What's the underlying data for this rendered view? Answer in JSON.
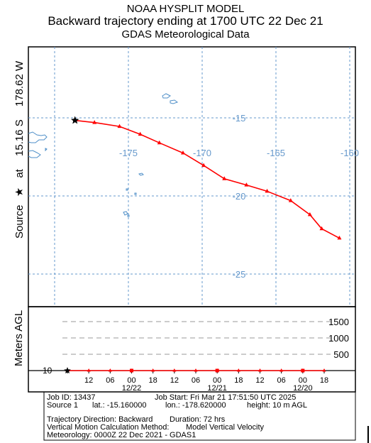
{
  "header": {
    "line1": "NOAA HYSPLIT MODEL",
    "line2": "Backward trajectory ending at 1700 UTC 22 Dec 21",
    "line3": "GDAS Meteorological Data"
  },
  "map": {
    "side_label_parts": [
      "Source",
      "★",
      "at",
      "15.16 S",
      "178.62 W"
    ],
    "lon_labels": [
      "-175",
      "-170",
      "-165",
      "-160"
    ],
    "lat_labels": [
      "-15",
      "-20",
      "-25"
    ],
    "grid_color": "#6699cc",
    "coast_color": "#4f8fc8",
    "trajectory_color": "#ff0000",
    "source_marker": "star-icon",
    "trajectory": [
      {
        "lon": -178.62,
        "lat": -15.16
      },
      {
        "lon": -177.3,
        "lat": -15.3
      },
      {
        "lon": -175.6,
        "lat": -15.55
      },
      {
        "lon": -174.2,
        "lat": -16.05
      },
      {
        "lon": -172.9,
        "lat": -16.6
      },
      {
        "lon": -171.3,
        "lat": -17.25
      },
      {
        "lon": -169.9,
        "lat": -18.05
      },
      {
        "lon": -168.5,
        "lat": -18.9
      },
      {
        "lon": -167.0,
        "lat": -19.3
      },
      {
        "lon": -165.6,
        "lat": -19.7
      },
      {
        "lon": -164.0,
        "lat": -20.3
      },
      {
        "lon": -162.7,
        "lat": -21.2
      },
      {
        "lon": -161.9,
        "lat": -22.1
      },
      {
        "lon": -160.7,
        "lat": -22.7
      }
    ]
  },
  "height_panel": {
    "ylabel": "Meters AGL",
    "levels": [
      "1500",
      "1000",
      "500"
    ],
    "start_height": "10",
    "time_ticks": [
      "12",
      "06",
      "00",
      "18",
      "12",
      "06",
      "00",
      "18",
      "12",
      "06",
      "00",
      "18"
    ],
    "date_labels": [
      "12/22",
      "12/21",
      "12/20"
    ]
  },
  "info": {
    "job_id": "Job ID: 13437",
    "job_start": "Job Start: Fri Mar 21 17:51:50 UTC 2025",
    "source": "Source 1",
    "lat": "lat.: -15.160000",
    "lon": "lon.: -178.620000",
    "height": "height: 10 m AGL",
    "direction": "Trajectory Direction: Backward",
    "duration": "Duration: 72 hrs",
    "vertical": "Vertical Motion Calculation Method:",
    "vertical_value": "Model Vertical Velocity",
    "meteorology": "Meteorology: 0000Z 22 Dec 2021 - GDAS1"
  }
}
